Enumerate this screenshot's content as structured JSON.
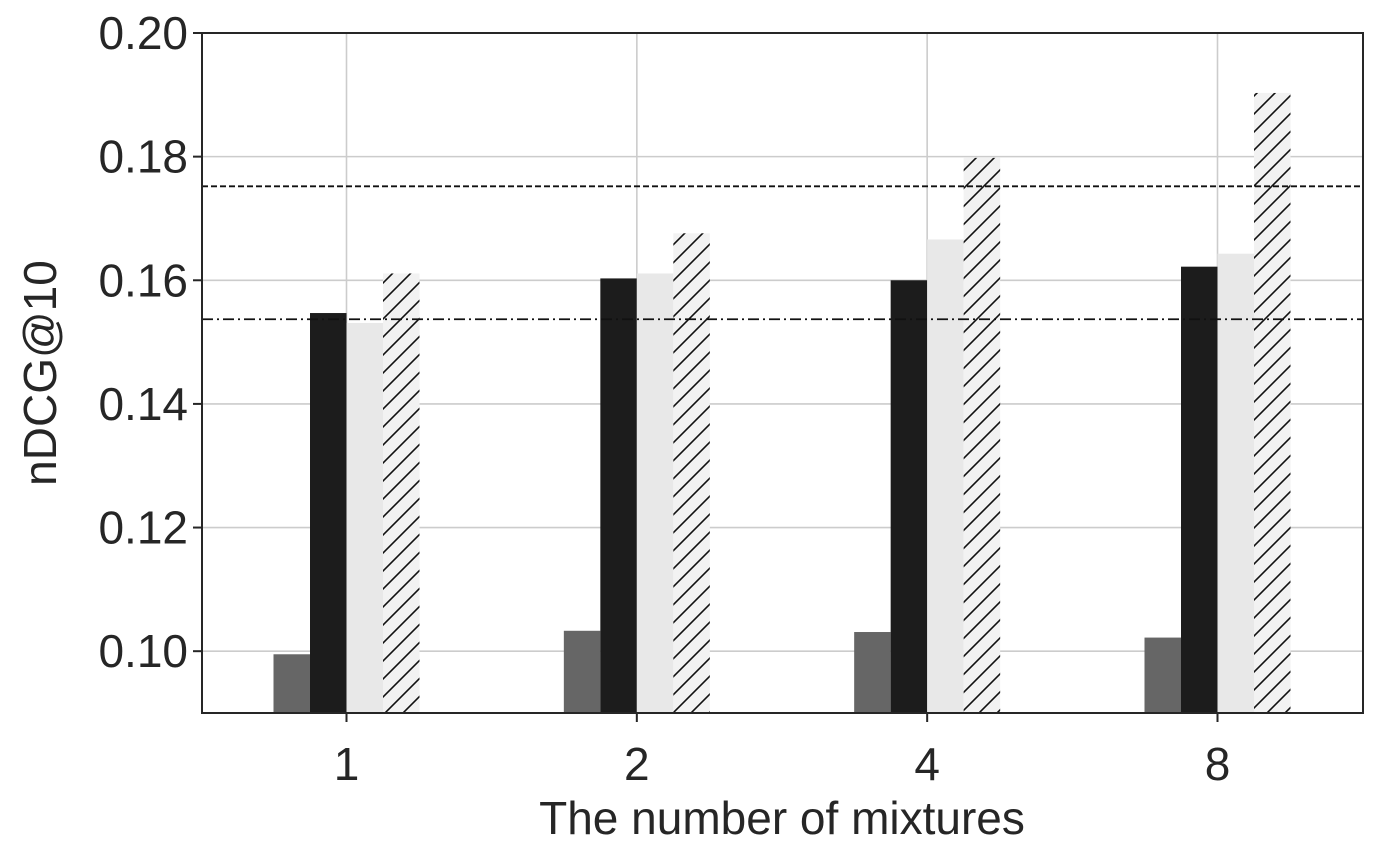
{
  "chart_data": {
    "type": "bar",
    "title": "",
    "xlabel": "The number of mixtures",
    "ylabel": "nDCG@10",
    "categories": [
      "1",
      "2",
      "4",
      "8"
    ],
    "ylim": [
      0.09,
      0.2
    ],
    "yticks": [
      0.1,
      0.12,
      0.14,
      0.16,
      0.18,
      0.2
    ],
    "ytick_labels": [
      "0.10",
      "0.12",
      "0.14",
      "0.16",
      "0.18",
      "0.20"
    ],
    "grid": true,
    "legend": "none",
    "series": [
      {
        "values": [
          0.0995,
          0.1033,
          0.1031,
          0.1022
        ],
        "color": "#666666",
        "hatch": false
      },
      {
        "values": [
          0.1547,
          0.1603,
          0.16,
          0.1622
        ],
        "color": "#1c1c1c",
        "hatch": false
      },
      {
        "values": [
          0.1531,
          0.1611,
          0.1666,
          0.1643
        ],
        "color": "#e8e8e8",
        "hatch": false
      },
      {
        "values": [
          0.1611,
          0.1676,
          0.1798,
          0.1903
        ],
        "color": "#f2f2f2",
        "hatch": true
      }
    ],
    "reference_lines": [
      {
        "value": 0.1752,
        "style": "dashed"
      },
      {
        "value": 0.1537,
        "style": "dashdot"
      }
    ]
  }
}
